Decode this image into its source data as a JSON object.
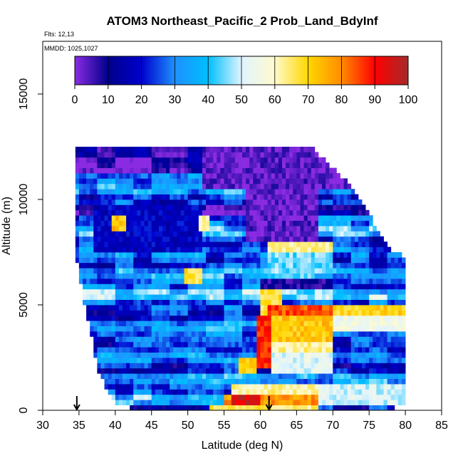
{
  "chart_data": {
    "type": "heatmap",
    "title": "ATOM3 Northeast_Pacific_2 Prob_Land_BdyInf",
    "flights_label": "Flts: 12,13",
    "mmdd_label": "MMDD: 1025,1027",
    "xlabel": "Latitude (deg N)",
    "ylabel": "Altitude (m)",
    "xlim": [
      30,
      85
    ],
    "ylim": [
      0,
      17500
    ],
    "x_ticks": [
      30,
      35,
      40,
      45,
      50,
      55,
      60,
      65,
      70,
      75,
      80,
      85
    ],
    "y_ticks": [
      0,
      5000,
      10000,
      15000
    ],
    "colorbar": {
      "min": 0,
      "max": 100,
      "ticks": [
        0,
        10,
        20,
        30,
        40,
        50,
        60,
        70,
        80,
        90,
        100
      ],
      "colors": [
        "#8a2be2",
        "#00008b",
        "#0000cd",
        "#1e90ff",
        "#00bfff",
        "#e0f4ff",
        "#fffacd",
        "#ffd700",
        "#ff8c00",
        "#ff0000",
        "#a52a2a"
      ]
    },
    "markers": {
      "description": "flight location arrows",
      "latitudes": [
        34.7,
        61.2
      ]
    },
    "envelope": {
      "lat_step": 0.5,
      "alt_step": 250,
      "boundary": [
        {
          "lat": 34.5,
          "top": 12500,
          "bottom": 7500
        },
        {
          "lat": 35.5,
          "top": 12500,
          "bottom": 5500
        },
        {
          "lat": 36.5,
          "top": 12500,
          "bottom": 4000
        },
        {
          "lat": 37.5,
          "top": 12500,
          "bottom": 2000
        },
        {
          "lat": 38.5,
          "top": 12500,
          "bottom": 1200
        },
        {
          "lat": 39.5,
          "top": 12500,
          "bottom": 600
        },
        {
          "lat": 40.5,
          "top": 12500,
          "bottom": 300
        },
        {
          "lat": 42.0,
          "top": 12500,
          "bottom": 100
        },
        {
          "lat": 50.0,
          "top": 12500,
          "bottom": 0
        },
        {
          "lat": 60.0,
          "top": 12500,
          "bottom": 0
        },
        {
          "lat": 67.0,
          "top": 12500,
          "bottom": 0
        },
        {
          "lat": 70.0,
          "top": 11500,
          "bottom": 0
        },
        {
          "lat": 73.0,
          "top": 10500,
          "bottom": 0
        },
        {
          "lat": 75.5,
          "top": 9000,
          "bottom": 0
        },
        {
          "lat": 78.0,
          "top": 7500,
          "bottom": 0
        },
        {
          "lat": 80.0,
          "top": 7300,
          "bottom": 400
        }
      ]
    },
    "altitude_bands": [
      {
        "alt": [
          11800,
          12500
        ],
        "base": 8
      },
      {
        "alt": [
          11300,
          11800
        ],
        "base": 4
      },
      {
        "alt": [
          10800,
          11300
        ],
        "base": 30
      },
      {
        "alt": [
          10300,
          10800
        ],
        "base": 35
      },
      {
        "alt": [
          9800,
          10300
        ],
        "base": 22
      },
      {
        "alt": [
          9300,
          9800
        ],
        "base": 6
      },
      {
        "alt": [
          8800,
          9300
        ],
        "base": 28
      },
      {
        "alt": [
          8300,
          8800
        ],
        "base": 38
      },
      {
        "alt": [
          7800,
          8300
        ],
        "base": 20
      },
      {
        "alt": [
          7300,
          7800
        ],
        "base": 28
      },
      {
        "alt": [
          6800,
          7300
        ],
        "base": 22
      },
      {
        "alt": [
          6300,
          6800
        ],
        "base": 34
      },
      {
        "alt": [
          5800,
          6300
        ],
        "base": 28
      },
      {
        "alt": [
          5300,
          5800
        ],
        "base": 42
      },
      {
        "alt": [
          4800,
          5300
        ],
        "base": 25
      },
      {
        "alt": [
          4300,
          4800
        ],
        "base": 20
      },
      {
        "alt": [
          3800,
          4300
        ],
        "base": 32
      },
      {
        "alt": [
          3300,
          3800
        ],
        "base": 25
      },
      {
        "alt": [
          2800,
          3300
        ],
        "base": 22
      },
      {
        "alt": [
          2300,
          3300
        ],
        "base": 30
      },
      {
        "alt": [
          1800,
          2300
        ],
        "base": 18
      },
      {
        "alt": [
          1300,
          1800
        ],
        "base": 35
      },
      {
        "alt": [
          800,
          1300
        ],
        "base": 26
      },
      {
        "alt": [
          300,
          800
        ],
        "base": 40
      },
      {
        "alt": [
          0,
          300
        ],
        "base": 20
      }
    ],
    "features": [
      {
        "lat": [
          52,
          80
        ],
        "alt": [
          10500,
          12500
        ],
        "value": 3
      },
      {
        "lat": [
          58,
          68
        ],
        "alt": [
          8000,
          10500
        ],
        "value": 3
      },
      {
        "lat": [
          37,
          52
        ],
        "alt": [
          7500,
          9800
        ],
        "value": 18
      },
      {
        "lat": [
          39.5,
          41.5
        ],
        "alt": [
          8500,
          9300
        ],
        "value": 72
      },
      {
        "lat": [
          51.5,
          53.0
        ],
        "alt": [
          8500,
          9300
        ],
        "value": 60
      },
      {
        "lat": [
          49.5,
          52.0
        ],
        "alt": [
          6000,
          6800
        ],
        "value": 68
      },
      {
        "lat": [
          61,
          70
        ],
        "alt": [
          7500,
          8000
        ],
        "value": 62
      },
      {
        "lat": [
          61,
          70
        ],
        "alt": [
          6500,
          7500
        ],
        "value": 45
      },
      {
        "lat": [
          60,
          70
        ],
        "alt": [
          5800,
          6200
        ],
        "value": 8
      },
      {
        "lat": [
          60,
          63
        ],
        "alt": [
          4300,
          5800
        ],
        "value": 68
      },
      {
        "lat": [
          61,
          70
        ],
        "alt": [
          4500,
          5000
        ],
        "value": 85
      },
      {
        "lat": [
          61,
          70
        ],
        "alt": [
          3300,
          4500
        ],
        "value": 72
      },
      {
        "lat": [
          61,
          70
        ],
        "alt": [
          2800,
          3300
        ],
        "value": 62
      },
      {
        "lat": [
          59.5,
          61.3
        ],
        "alt": [
          2000,
          4500
        ],
        "value": 88
      },
      {
        "lat": [
          57,
          59.5
        ],
        "alt": [
          1800,
          2400
        ],
        "value": 72
      },
      {
        "lat": [
          61.3,
          70
        ],
        "alt": [
          1800,
          2800
        ],
        "value": 52
      },
      {
        "lat": [
          70,
          80
        ],
        "alt": [
          4500,
          5000
        ],
        "value": 70
      },
      {
        "lat": [
          70,
          80
        ],
        "alt": [
          3800,
          4500
        ],
        "value": 55
      },
      {
        "lat": [
          56,
          68
        ],
        "alt": [
          800,
          1300
        ],
        "value": 62
      },
      {
        "lat": [
          55,
          68
        ],
        "alt": [
          300,
          800
        ],
        "value": 78
      },
      {
        "lat": [
          56,
          60
        ],
        "alt": [
          300,
          800
        ],
        "value": 95
      },
      {
        "lat": [
          53,
          68
        ],
        "alt": [
          0,
          300
        ],
        "value": 65
      },
      {
        "lat": [
          68,
          80
        ],
        "alt": [
          300,
          1300
        ],
        "value": 50
      },
      {
        "lat": [
          42,
          52
        ],
        "alt": [
          0,
          300
        ],
        "value": 12
      }
    ]
  }
}
